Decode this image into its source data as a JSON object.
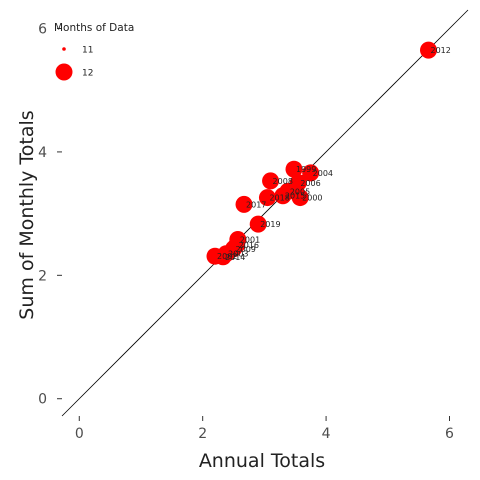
{
  "chart_data": {
    "type": "scatter",
    "title": "",
    "xlabel": "Annual Totals",
    "ylabel": "Sum of Monthly Totals",
    "xlim": [
      -0.28,
      6.3
    ],
    "ylim": [
      -0.28,
      6.3
    ],
    "x_ticks": [
      0,
      2,
      4,
      6
    ],
    "y_ticks": [
      0,
      2,
      4,
      6
    ],
    "x_tick_labels": [
      "0",
      "2",
      "4",
      "6"
    ],
    "y_tick_labels": [
      "0",
      "2",
      "4",
      "6"
    ],
    "grid": false,
    "reference_line": "y = x",
    "marker_color": "#ff0000",
    "legend": {
      "title": "Months of Data",
      "placement": "top-left",
      "entries": [
        {
          "label": "11",
          "months": 11
        },
        {
          "label": "12",
          "months": 12
        }
      ]
    },
    "points": [
      {
        "label": "2012",
        "x": 5.66,
        "y": 5.65,
        "months": 12
      },
      {
        "label": "1999",
        "x": 3.48,
        "y": 3.72,
        "months": 12
      },
      {
        "label": "2004",
        "x": 3.75,
        "y": 3.66,
        "months": 12
      },
      {
        "label": "2008",
        "x": 3.1,
        "y": 3.53,
        "months": 12
      },
      {
        "label": "2006",
        "x": 3.55,
        "y": 3.5,
        "months": 12
      },
      {
        "label": "2005",
        "x": 3.38,
        "y": 3.36,
        "months": 12
      },
      {
        "label": "2015",
        "x": 3.3,
        "y": 3.29,
        "months": 12
      },
      {
        "label": "2000",
        "x": 3.58,
        "y": 3.26,
        "months": 12
      },
      {
        "label": "2018",
        "x": 3.05,
        "y": 3.26,
        "months": 12
      },
      {
        "label": "2017",
        "x": 2.67,
        "y": 3.15,
        "months": 12
      },
      {
        "label": "2019",
        "x": 2.9,
        "y": 2.83,
        "months": 12
      },
      {
        "label": "2001",
        "x": 2.57,
        "y": 2.58,
        "months": 12
      },
      {
        "label": "2016",
        "x": 2.55,
        "y": 2.49,
        "months": 12
      },
      {
        "label": "2009",
        "x": 2.5,
        "y": 2.43,
        "months": 12
      },
      {
        "label": "2003",
        "x": 2.38,
        "y": 2.35,
        "months": 12
      },
      {
        "label": "2002",
        "x": 2.2,
        "y": 2.31,
        "months": 12
      },
      {
        "label": "2014",
        "x": 2.33,
        "y": 2.3,
        "months": 12
      }
    ]
  }
}
